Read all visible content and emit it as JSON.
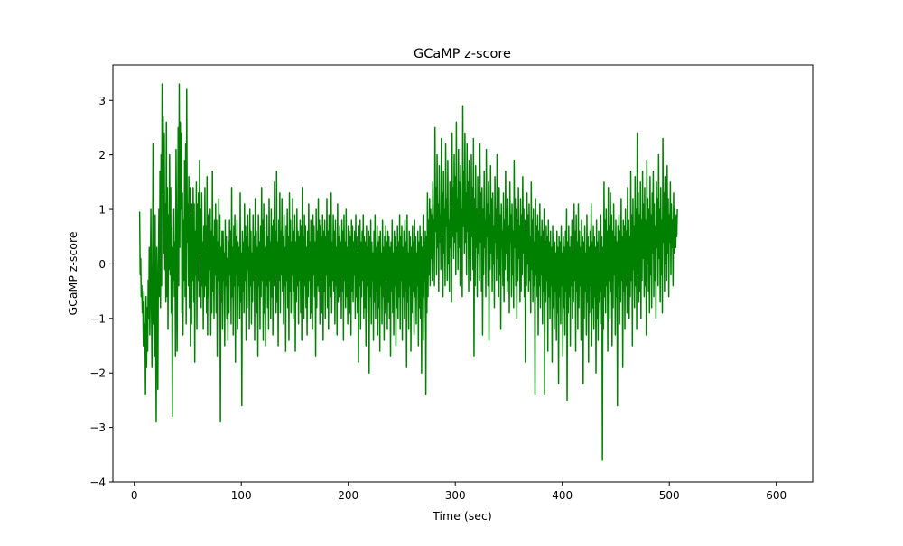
{
  "chart_data": {
    "type": "line",
    "title": "GCaMP z-score",
    "xlabel": "Time (sec)",
    "ylabel": "GCaMP z-score",
    "xlim": [
      -20,
      634
    ],
    "ylim": [
      -4,
      3.65
    ],
    "xticks": [
      0,
      100,
      200,
      300,
      400,
      500,
      600
    ],
    "xtick_labels": [
      "0",
      "100",
      "200",
      "300",
      "400",
      "500",
      "600"
    ],
    "yticks": [
      -4,
      -3,
      -2,
      -1,
      0,
      1,
      2,
      3
    ],
    "ytick_labels": [
      "−4",
      "−3",
      "−2",
      "−1",
      "0",
      "1",
      "2",
      "3"
    ],
    "grid": false,
    "legend": "none",
    "series": [
      {
        "color": "#008000",
        "x_start": 5,
        "x_step": 0.5,
        "values": [
          0.96,
          -0.2,
          0.1,
          -0.6,
          -0.4,
          -0.9,
          -0.7,
          -1.5,
          -0.5,
          -1.3,
          -1.1,
          -2.4,
          -0.6,
          -1.9,
          -0.8,
          -1.6,
          -0.3,
          -1.0,
          0.3,
          -1.3,
          -0.4,
          1.0,
          -0.7,
          -1.9,
          -0.5,
          2.2,
          -1.1,
          -0.2,
          -1.7,
          0.9,
          -1.3,
          -2.9,
          0.3,
          -1.0,
          -2.3,
          0.0,
          1.0,
          -0.6,
          1.7,
          -0.8,
          2.0,
          -0.4,
          3.3,
          1.3,
          2.7,
          0.2,
          2.4,
          -0.1,
          1.1,
          -0.7,
          2.6,
          -0.6,
          1.4,
          -1.2,
          0.9,
          -0.1,
          2.0,
          -0.2,
          1.4,
          -0.9,
          0.7,
          -2.8,
          0.3,
          -0.3,
          1.0,
          -0.6,
          0.4,
          -1.7,
          2.1,
          0.6,
          -1.6,
          0.0,
          2.5,
          -0.4,
          3.3,
          0.3,
          2.6,
          1.0,
          2.4,
          -0.9,
          1.3,
          -1.3,
          0.8,
          -0.3,
          1.9,
          -0.6,
          2.2,
          -1.1,
          3.2,
          0.4,
          1.1,
          -0.4,
          1.6,
          -0.8,
          1.4,
          -1.5,
          0.9,
          -1.1,
          1.1,
          -0.3,
          1.4,
          -0.7,
          1.1,
          -1.8,
          0.6,
          -0.2,
          1.5,
          -1.2,
          1.1,
          -0.3,
          1.3,
          -0.6,
          1.9,
          0.2,
          1.0,
          -0.8,
          1.3,
          -0.4,
          0.4,
          -1.2,
          0.7,
          -0.6,
          1.4,
          -0.4,
          0.7,
          -0.9,
          1.6,
          -1.3,
          0.9,
          -0.6,
          0.3,
          -0.1,
          1.0,
          -1.3,
          0.6,
          -0.9,
          1.7,
          -0.5,
          0.5,
          -1.0,
          0.8,
          -0.2,
          1.1,
          -0.9,
          0.8,
          -1.7,
          0.4,
          -0.3,
          1.2,
          -0.5,
          0.9,
          -2.9,
          0.3,
          -0.7,
          0.6,
          -1.2,
          0.6,
          -0.3,
          0.2,
          -1.5,
          0.8,
          -0.4,
          0.5,
          -1.0,
          0.1,
          -1.4,
          0.4,
          -0.9,
          0.8,
          -0.2,
          0.6,
          -1.1,
          1.4,
          -0.6,
          0.3,
          -1.3,
          0.7,
          -0.4,
          0.9,
          -1.8,
          0.5,
          -0.2,
          0.8,
          -1.2,
          0.4,
          -0.4,
          0.3,
          -1.0,
          1.3,
          -0.7,
          0.2,
          -2.6,
          0.6,
          -0.5,
          0.4,
          -0.9,
          1.1,
          -0.3,
          0.7,
          -1.4,
          0.5,
          -0.8,
          0.9,
          -0.1,
          0.3,
          -1.2,
          1.0,
          -0.4,
          0.6,
          -1.1,
          0.2,
          -0.7,
          0.9,
          -0.3,
          0.5,
          -1.4,
          1.2,
          -0.2,
          0.6,
          -0.9,
          0.3,
          -1.7,
          0.9,
          -0.4,
          0.4,
          -1.2,
          0.7,
          -0.6,
          1.4,
          -0.3,
          0.8,
          -1.4,
          1.1,
          -0.9,
          0.6,
          -1.5,
          0.3,
          -0.4,
          0.9,
          -0.8,
          0.5,
          -1.2,
          1.2,
          -0.3,
          0.4,
          -1.0,
          1.0,
          -0.6,
          0.7,
          -1.3,
          0.8,
          -0.4,
          1.5,
          -0.2,
          0.6,
          -0.9,
          1.7,
          -0.7,
          0.4,
          -1.5,
          0.8,
          -0.3,
          1.3,
          -0.9,
          0.6,
          -0.2,
          1.2,
          -0.5,
          0.5,
          -1.1,
          0.9,
          -0.4,
          0.3,
          -1.6,
          0.7,
          -0.3,
          1.0,
          -0.8,
          0.5,
          -1.4,
          1.3,
          -0.5,
          0.8,
          -0.9,
          0.4,
          -0.2,
          1.2,
          -1.0,
          0.6,
          -0.5,
          0.9,
          -1.6,
          0.4,
          -0.7,
          1.0,
          -0.4,
          0.6,
          -1.1,
          0.5,
          -0.3,
          0.8,
          -0.9,
          0.7,
          -1.4,
          1.4,
          -0.6,
          0.5,
          -1.0,
          0.9,
          -0.4,
          0.7,
          -0.8,
          0.3,
          -1.3,
          0.6,
          -0.6,
          1.1,
          -0.3,
          0.4,
          -1.0,
          0.8,
          -0.9,
          0.5,
          -1.2,
          0.9,
          -0.2,
          0.7,
          -0.6,
          0.4,
          -1.7,
          1.0,
          -0.8,
          0.6,
          -0.4,
          1.2,
          -0.5,
          0.8,
          -1.1,
          0.7,
          -0.3,
          0.5,
          -0.9,
          0.9,
          -1.4,
          0.6,
          -0.5,
          0.8,
          -1.0,
          0.5,
          -0.2,
          1.2,
          -0.8,
          0.6,
          -1.2,
          0.9,
          -0.4,
          0.7,
          -0.6,
          1.3,
          -0.9,
          0.4,
          -0.3,
          0.9,
          -0.5,
          0.6,
          -1.1,
          0.8,
          -0.4,
          0.3,
          -1.3,
          1.1,
          -0.7,
          0.5,
          -0.6,
          0.7,
          -0.2,
          0.4,
          -1.0,
          0.8,
          -0.5,
          0.6,
          -1.4,
          0.9,
          -0.3,
          0.4,
          -0.8,
          1.0,
          -0.6,
          0.3,
          -1.1,
          0.7,
          -0.4,
          0.6,
          -0.9,
          0.5,
          -1.3,
          0.8,
          -0.5,
          0.7,
          -0.7,
          0.4,
          -0.2,
          0.6,
          -1.0,
          0.9,
          -0.6,
          0.5,
          -0.9,
          0.3,
          -1.8,
          0.7,
          -0.4,
          0.8,
          -1.2,
          0.4,
          -0.6,
          0.6,
          -0.3,
          0.9,
          -1.0,
          0.5,
          -0.8,
          0.4,
          -1.5,
          0.7,
          -0.4,
          0.3,
          -0.9,
          0.6,
          -2.0,
          0.5,
          -0.6,
          0.8,
          -1.1,
          0.4,
          -0.3,
          0.2,
          -1.4,
          0.6,
          -0.7,
          0.9,
          -1.0,
          0.3,
          -0.5,
          0.7,
          -1.3,
          0.4,
          -0.8,
          0.5,
          -1.6,
          0.6,
          -0.4,
          0.2,
          -1.1,
          0.8,
          -0.6,
          0.3,
          -1.4,
          0.5,
          -0.9,
          0.7,
          -0.3,
          0.4,
          -1.2,
          0.6,
          -0.7,
          0.5,
          -1.0,
          0.3,
          -1.7,
          0.4,
          -0.5,
          0.8,
          -0.9,
          0.2,
          -1.3,
          0.6,
          -0.4,
          0.5,
          -1.5,
          0.3,
          -0.8,
          0.7,
          -1.0,
          0.4,
          -0.6,
          0.9,
          -1.2,
          0.5,
          -0.3,
          0.7,
          -1.4,
          0.3,
          -0.6,
          0.6,
          -1.0,
          0.8,
          -0.5,
          0.4,
          -1.9,
          0.9,
          -0.7,
          0.2,
          -1.2,
          0.6,
          -0.4,
          0.5,
          -1.6,
          0.3,
          -0.9,
          0.7,
          -0.5,
          0.4,
          -1.3,
          0.8,
          -0.6,
          0.5,
          -1.1,
          0.2,
          -0.4,
          0.6,
          -1.5,
          0.4,
          -0.8,
          0.7,
          -1.0,
          0.5,
          -2.0,
          0.3,
          -0.6,
          0.9,
          -1.4,
          0.4,
          -0.3,
          0.6,
          -2.4,
          0.5,
          -0.9,
          1.3,
          -0.6,
          0.8,
          -0.2,
          1.2,
          -0.4,
          1.0,
          0.1,
          0.9,
          -0.3,
          1.5,
          0.2,
          0.8,
          -0.4,
          2.5,
          0.6,
          1.4,
          -0.2,
          2.0,
          0.3,
          1.1,
          -0.5,
          1.8,
          0.4,
          0.9,
          -0.1,
          2.3,
          0.5,
          1.3,
          -0.6,
          1.7,
          0.2,
          1.0,
          -0.4,
          2.2,
          0.7,
          1.2,
          -0.3,
          1.9,
          0.0,
          0.8,
          -0.5,
          1.5,
          0.3,
          1.1,
          -0.7,
          2.4,
          0.5,
          1.4,
          0.1,
          2.0,
          0.4,
          1.6,
          -0.2,
          2.6,
          0.6,
          1.2,
          -0.1,
          2.1,
          0.3,
          1.5,
          -0.4,
          1.8,
          0.5,
          1.0,
          -0.6,
          2.9,
          0.7,
          1.7,
          0.2,
          2.4,
          0.4,
          1.3,
          -0.2,
          2.2,
          0.6,
          1.5,
          -0.5,
          1.9,
          0.1,
          1.1,
          -0.3,
          2.0,
          0.5,
          1.4,
          -0.1,
          2.3,
          -1.7,
          1.2,
          -0.4,
          1.8,
          0.3,
          1.0,
          -0.6,
          1.6,
          0.2,
          0.9,
          -0.3,
          2.2,
          0.4,
          1.3,
          -0.5,
          1.4,
          -1.3,
          1.0,
          -0.2,
          1.7,
          0.3,
          0.8,
          -0.6,
          2.1,
          0.5,
          1.1,
          -0.4,
          1.5,
          -1.4,
          0.9,
          -0.1,
          1.8,
          0.2,
          1.2,
          -0.5,
          1.3,
          0.0,
          0.7,
          -0.8,
          1.6,
          0.4,
          1.0,
          -0.3,
          2.0,
          0.1,
          0.8,
          -0.6,
          1.4,
          -0.2,
          0.9,
          -1.2,
          1.1,
          0.3,
          0.6,
          -0.4,
          1.3,
          -0.7,
          0.8,
          -0.1,
          1.7,
          0.2,
          1.0,
          -0.5,
          1.2,
          -0.3,
          0.7,
          -0.9,
          1.5,
          0.4,
          0.9,
          -0.6,
          1.1,
          -0.2,
          0.6,
          -0.8,
          1.9,
          0.3,
          1.2,
          -0.4,
          1.0,
          -1.0,
          0.8,
          -0.3,
          1.4,
          0.1,
          0.7,
          -0.7,
          1.2,
          -0.5,
          0.9,
          -0.2,
          1.6,
          0.2,
          1.0,
          -0.6,
          0.8,
          -1.8,
          0.6,
          -0.4,
          1.3,
          0.0,
          0.9,
          -0.5,
          1.1,
          -0.3,
          0.5,
          -0.9,
          1.5,
          -0.1,
          0.8,
          -0.7,
          1.0,
          -0.4,
          0.4,
          -2.4,
          1.2,
          -0.2,
          0.7,
          -0.6,
          0.9,
          -1.3,
          0.6,
          -0.4,
          1.1,
          -0.8,
          0.5,
          -0.2,
          0.8,
          -1.1,
          0.6,
          -0.5,
          1.0,
          -2.4,
          0.4,
          -0.7,
          0.7,
          -0.3,
          0.5,
          -1.6,
          0.8,
          -0.6,
          0.4,
          -1.0,
          0.6,
          -0.4,
          0.3,
          -1.8,
          0.7,
          -0.8,
          0.5,
          -1.2,
          0.4,
          -0.5,
          0.2,
          -1.4,
          0.6,
          -0.9,
          0.3,
          -2.2,
          0.5,
          -0.6,
          0.4,
          -1.1,
          0.7,
          -0.4,
          0.2,
          -1.7,
          0.5,
          -0.8,
          0.3,
          -1.3,
          0.6,
          -0.5,
          1.0,
          -2.5,
          0.4,
          -0.9,
          0.7,
          -0.6,
          0.3,
          -1.5,
          0.5,
          -0.4,
          0.8,
          -1.0,
          0.2,
          -0.7,
          1.1,
          -0.3,
          0.6,
          -1.6,
          0.9,
          -0.5,
          0.4,
          -1.2,
          1.1,
          -0.8,
          0.6,
          -0.4,
          0.3,
          -1.4,
          0.8,
          -0.6,
          0.5,
          -2.2,
          0.4,
          -1.0,
          0.7,
          -0.5,
          0.2,
          -1.3,
          0.9,
          -0.7,
          0.5,
          -1.8,
          0.3,
          -0.9,
          0.6,
          -0.4,
          1.1,
          -1.5,
          0.4,
          -0.8,
          0.7,
          -1.2,
          0.5,
          -0.6,
          0.3,
          -2.0,
          0.8,
          -1.0,
          0.4,
          -1.4,
          0.6,
          -0.7,
          0.2,
          -1.1,
          0.9,
          -0.5,
          0.5,
          -3.6,
          0.3,
          -1.2,
          1.5,
          -0.6,
          0.8,
          -0.9,
          1.0,
          -0.4,
          0.6,
          -1.6,
          1.4,
          -0.3,
          0.7,
          -1.0,
          1.3,
          -0.5,
          0.9,
          -1.5,
          0.6,
          -0.8,
          1.1,
          -0.2,
          0.5,
          -1.3,
          0.8,
          -0.6,
          0.4,
          -2.6,
          0.7,
          -0.4,
          0.9,
          -1.1,
          0.6,
          -0.7,
          1.2,
          -0.3,
          0.5,
          -1.9,
          0.8,
          -0.5,
          0.7,
          -1.2,
          1.0,
          -0.4,
          0.6,
          -0.9,
          1.4,
          -0.2,
          0.8,
          -1.0,
          0.5,
          -0.6,
          1.7,
          -0.3,
          0.9,
          -1.5,
          1.2,
          -0.1,
          0.7,
          -0.8,
          1.6,
          -0.4,
          1.0,
          -1.2,
          2.4,
          -0.2,
          1.3,
          -0.7,
          0.9,
          -0.5,
          1.5,
          -1.0,
          0.8,
          -0.3,
          1.7,
          0.1,
          1.1,
          -0.6,
          1.4,
          -0.4,
          0.8,
          -1.3,
          1.9,
          0.0,
          1.2,
          -0.5,
          1.0,
          -0.9,
          1.6,
          -0.2,
          0.9,
          -0.8,
          1.3,
          0.2,
          1.7,
          -0.6,
          1.1,
          -0.3,
          0.7,
          -1.0,
          1.5,
          0.3,
          1.2,
          -0.4,
          2.0,
          0.1,
          1.0,
          -0.7,
          1.4,
          -0.2,
          0.8,
          -0.9,
          2.3,
          0.4,
          1.3,
          -0.5,
          1.6,
          0.0,
          1.0,
          -0.3,
          1.8,
          0.2,
          1.2,
          -0.6,
          0.9,
          0.4,
          1.5,
          -0.2,
          1.1,
          0.3,
          0.8,
          -0.4,
          1.3,
          0.2,
          1.0,
          0.6,
          0.3,
          0.9,
          0.5,
          1.0
        ]
      }
    ]
  }
}
